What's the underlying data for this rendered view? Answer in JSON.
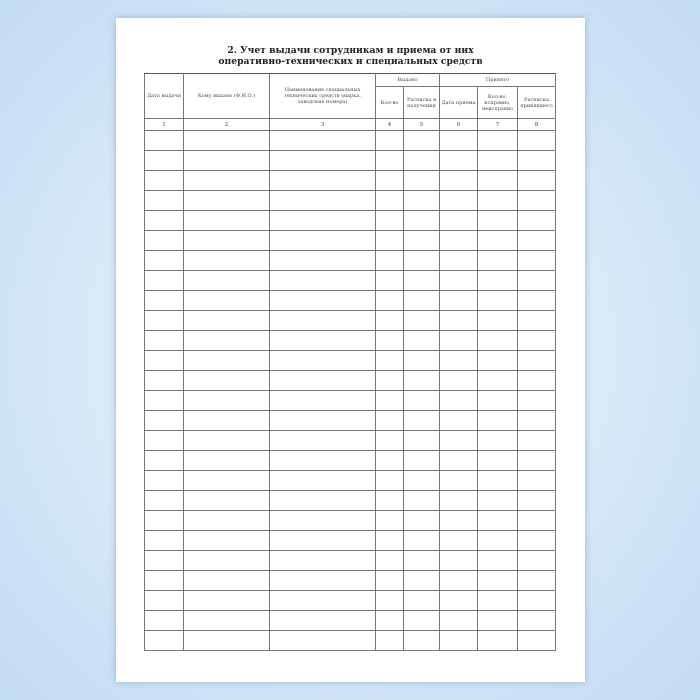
{
  "title_line1": "2. Учет выдачи сотрудникам и приема от них",
  "title_line2": "оперативно-технических и специальных средств",
  "headers": {
    "date_issue": "Дата выдачи",
    "issued_to": "Кому выдано (Ф.И.О.)",
    "name": "Наименование специальных технических средств (марка, заводские номера)",
    "issued_group": "Выдано",
    "qty": "Кол-во",
    "receipt": "Расписка в получении",
    "accepted_group": "Принято",
    "date_accept": "Дата приема",
    "qty_condition": "Кол-во, исправно, неисправно",
    "receiver_signature": "Расписка принявшего"
  },
  "column_numbers": [
    "1",
    "2",
    "3",
    "4",
    "5",
    "6",
    "7",
    "8"
  ]
}
